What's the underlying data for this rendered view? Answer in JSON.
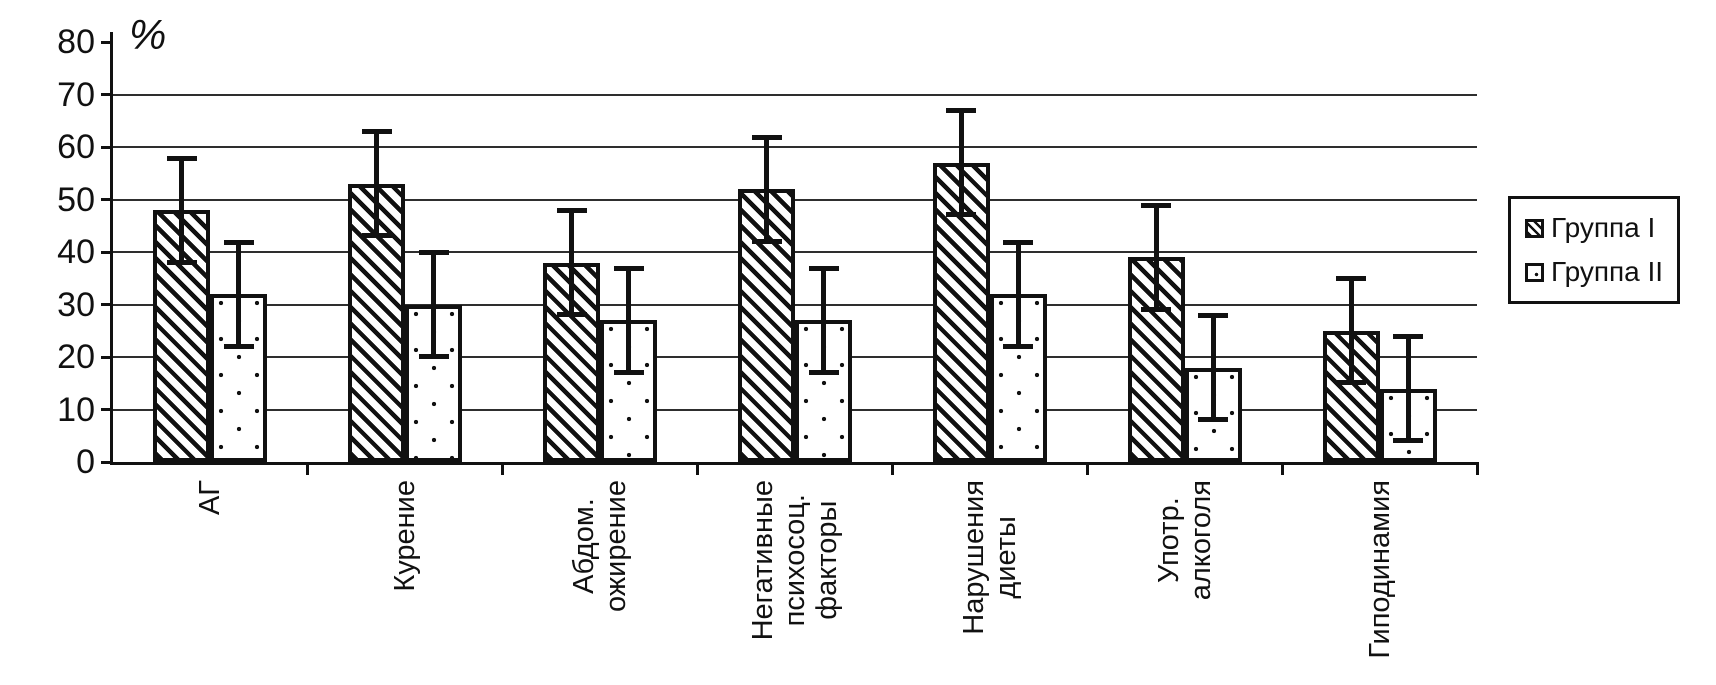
{
  "chart_data": {
    "type": "bar",
    "title": "",
    "ylabel": "%",
    "xlabel": "",
    "ylim": [
      0,
      80
    ],
    "yticks": [
      0,
      10,
      20,
      30,
      40,
      50,
      60,
      70,
      80
    ],
    "grid": true,
    "legend_position": "right",
    "categories": [
      [
        "АГ"
      ],
      [
        "Курение"
      ],
      [
        "Абдом.",
        "ожирение"
      ],
      [
        "Негативные",
        "психосоц.",
        "факторы"
      ],
      [
        "Нарушения",
        "диеты"
      ],
      [
        "Употр.",
        "алкоголя"
      ],
      [
        "Гиподинамия"
      ]
    ],
    "series": [
      {
        "name": "Группа I",
        "pattern": "diagonal-hatch",
        "values": [
          48,
          53,
          38,
          52,
          57,
          39,
          25
        ],
        "errors": [
          10,
          10,
          10,
          10,
          10,
          10,
          10
        ]
      },
      {
        "name": "Группа II",
        "pattern": "dots",
        "values": [
          32,
          30,
          27,
          27,
          32,
          18,
          14
        ],
        "errors": [
          10,
          10,
          10,
          10,
          10,
          10,
          10
        ]
      }
    ]
  },
  "colors": {
    "foreground": "#111111",
    "background": "#ffffff",
    "gridline": "#2e2e2e"
  }
}
